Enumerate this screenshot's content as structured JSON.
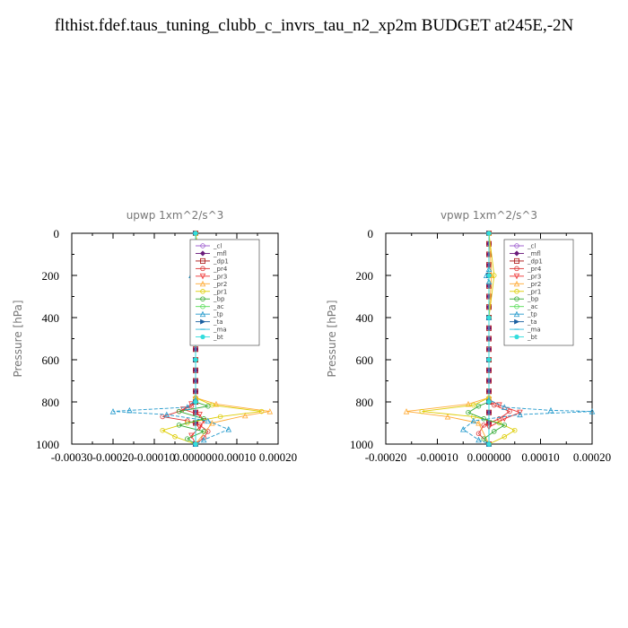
{
  "page_title": "flthist.fdef.taus_tuning_clubb_c_invrs_tau_n2_xp2m  BUDGET at245E,-2N",
  "chart_data": [
    {
      "type": "line",
      "title": "upwp   1xm^2/s^3",
      "ylabel": "Pressure [hPa]",
      "ylim": [
        1000,
        0
      ],
      "xlim": [
        -0.0003,
        0.0002
      ],
      "xticks": [
        -0.0003,
        -0.0002,
        -0.0001,
        0.0,
        0.0001,
        0.0002
      ],
      "xtick_labels": [
        "-0.00030",
        "-0.00020",
        "-0.00010",
        "0.000000",
        "0.00010",
        "0.00020"
      ],
      "yticks": [
        0,
        200,
        400,
        600,
        800,
        1000
      ],
      "ytick_labels": [
        "0",
        "200",
        "400",
        "600",
        "800",
        "1000"
      ],
      "legend_position": "top-right",
      "series": [
        {
          "name": "_cl",
          "color": "#9955cc",
          "marker": "circle",
          "x": [
            0,
            0,
            0,
            0,
            0,
            0,
            0,
            0,
            0,
            0,
            0,
            0,
            0,
            0,
            0,
            0,
            0,
            0,
            0,
            0
          ],
          "y": [
            0,
            50,
            100,
            150,
            200,
            250,
            300,
            350,
            400,
            450,
            500,
            550,
            600,
            650,
            700,
            750,
            800,
            850,
            900,
            1000
          ]
        },
        {
          "name": "_mfl",
          "color": "#6a1a7a",
          "marker": "diamond",
          "x": [
            0,
            0,
            0,
            0,
            0,
            0,
            0,
            0,
            0,
            0,
            0,
            0,
            0,
            0,
            0,
            0,
            0,
            0,
            0,
            0
          ],
          "y": [
            0,
            50,
            100,
            150,
            200,
            250,
            300,
            350,
            400,
            450,
            500,
            550,
            600,
            650,
            700,
            750,
            800,
            850,
            900,
            1000
          ]
        },
        {
          "name": "_dp1",
          "color": "#aa1111",
          "marker": "square",
          "x": [
            0,
            0,
            0,
            0,
            0,
            0,
            0,
            0,
            0,
            0,
            0,
            0,
            0,
            0,
            0,
            0,
            0,
            0,
            0,
            0
          ],
          "y": [
            0,
            50,
            100,
            150,
            200,
            250,
            300,
            350,
            400,
            450,
            500,
            550,
            600,
            650,
            700,
            750,
            800,
            850,
            900,
            1000
          ]
        },
        {
          "name": "_pr4",
          "color": "#dd3333",
          "marker": "circle",
          "x": [
            0,
            0,
            0,
            0,
            0,
            -1e-05,
            -4e-05,
            -8e-05,
            -2e-05,
            1e-05,
            3e-05,
            2e-05,
            0
          ],
          "y": [
            0,
            200,
            600,
            780,
            800,
            820,
            845,
            870,
            890,
            910,
            940,
            970,
            1000
          ]
        },
        {
          "name": "_pr3",
          "color": "#ee3333",
          "marker": "triangle-down",
          "x": [
            0,
            0,
            0,
            -1e-05,
            -3e-05,
            1e-05,
            2e-05,
            1e-05,
            -1e-05,
            0
          ],
          "y": [
            0,
            600,
            790,
            810,
            835,
            860,
            890,
            920,
            960,
            1000
          ]
        },
        {
          "name": "_pr2",
          "color": "#ffaa33",
          "marker": "triangle-up",
          "x": [
            0,
            1e-05,
            0,
            0,
            5e-05,
            0.00018,
            0.00012,
            4e-05,
            0
          ],
          "y": [
            0,
            200,
            400,
            780,
            810,
            845,
            865,
            900,
            1000
          ]
        },
        {
          "name": "_pr1",
          "color": "#ddcc00",
          "marker": "circle",
          "x": [
            0,
            2e-05,
            0,
            0,
            4e-05,
            0.00016,
            6e-05,
            -2e-05,
            -8e-05,
            -5e-05,
            0
          ],
          "y": [
            0,
            210,
            400,
            780,
            815,
            845,
            870,
            900,
            935,
            965,
            1000
          ]
        },
        {
          "name": "_bp",
          "color": "#33aa33",
          "marker": "circle",
          "x": [
            0,
            0,
            0,
            3e-05,
            -4e-05,
            2e-05,
            -4e-05,
            2e-05,
            -2e-05,
            0
          ],
          "y": [
            0,
            600,
            800,
            820,
            845,
            880,
            910,
            940,
            975,
            1000
          ]
        },
        {
          "name": "_ac",
          "color": "#55dd55",
          "marker": "circle",
          "x": [
            0,
            0,
            0,
            0,
            0,
            0
          ],
          "y": [
            0,
            200,
            400,
            600,
            800,
            1000
          ]
        },
        {
          "name": "_tp",
          "color": "#2299cc",
          "marker": "triangle-up",
          "x": [
            -5e-06,
            -1e-05,
            -5e-06,
            0,
            0,
            -2e-05,
            -0.00016,
            -0.0002,
            -7e-05,
            3e-05,
            8e-05,
            2e-05,
            0
          ],
          "y": [
            170,
            200,
            230,
            400,
            790,
            825,
            840,
            845,
            860,
            890,
            930,
            980,
            1000
          ]
        },
        {
          "name": "_ta",
          "color": "#1a5fa0",
          "marker": "arrow",
          "x": [
            0,
            0,
            0,
            0,
            0,
            0
          ],
          "y": [
            0,
            200,
            400,
            600,
            800,
            1000
          ]
        },
        {
          "name": "_ma",
          "color": "#33bbdd",
          "marker": "dash",
          "x": [
            0,
            0,
            0,
            0,
            0,
            0
          ],
          "y": [
            0,
            200,
            400,
            600,
            800,
            1000
          ]
        },
        {
          "name": "_bt",
          "color": "#33dddd",
          "marker": "circle-filled",
          "x": [
            0,
            0,
            0,
            0,
            0,
            0
          ],
          "y": [
            0,
            200,
            400,
            600,
            800,
            1000
          ]
        }
      ]
    },
    {
      "type": "line",
      "title": "vpwp   1xm^2/s^3",
      "ylabel": "Pressure [hPa]",
      "ylim": [
        1000,
        0
      ],
      "xlim": [
        -0.0002,
        0.0002
      ],
      "xticks": [
        -0.0002,
        -0.0001,
        0.0,
        0.0001,
        0.0002
      ],
      "xtick_labels": [
        "-0.00020",
        "-0.00010",
        "0.000000",
        "0.00010",
        "0.00020"
      ],
      "yticks": [
        0,
        200,
        400,
        600,
        800,
        1000
      ],
      "ytick_labels": [
        "0",
        "200",
        "400",
        "600",
        "800",
        "1000"
      ],
      "legend_position": "top-right",
      "series": [
        {
          "name": "_cl",
          "color": "#9955cc",
          "marker": "circle",
          "x": [
            0,
            0,
            0,
            0,
            0,
            0,
            0,
            0,
            0,
            0,
            0,
            0,
            0,
            0,
            0,
            0,
            0,
            0,
            0,
            0
          ],
          "y": [
            0,
            50,
            100,
            150,
            200,
            250,
            300,
            350,
            400,
            450,
            500,
            550,
            600,
            650,
            700,
            750,
            800,
            850,
            900,
            1000
          ]
        },
        {
          "name": "_mfl",
          "color": "#6a1a7a",
          "marker": "diamond",
          "x": [
            0,
            0,
            0,
            0,
            0,
            0,
            0,
            0,
            0,
            0,
            0,
            0,
            0,
            0,
            0,
            0,
            0,
            0,
            0,
            0
          ],
          "y": [
            0,
            50,
            100,
            150,
            200,
            250,
            300,
            350,
            400,
            450,
            500,
            550,
            600,
            650,
            700,
            750,
            800,
            850,
            900,
            1000
          ]
        },
        {
          "name": "_dp1",
          "color": "#aa1111",
          "marker": "square",
          "x": [
            0,
            0,
            0,
            0,
            0,
            0,
            0,
            0,
            0,
            0,
            0,
            0,
            0,
            0,
            0,
            0,
            0,
            0,
            0,
            0
          ],
          "y": [
            0,
            50,
            100,
            150,
            200,
            250,
            300,
            350,
            400,
            450,
            500,
            550,
            600,
            650,
            700,
            750,
            800,
            850,
            900,
            1000
          ]
        },
        {
          "name": "_pr4",
          "color": "#dd3333",
          "marker": "circle",
          "x": [
            0,
            0,
            0,
            1e-05,
            4e-05,
            2e-05,
            -1e-05,
            -2e-05,
            0
          ],
          "y": [
            0,
            600,
            790,
            815,
            845,
            880,
            910,
            950,
            1000
          ]
        },
        {
          "name": "_pr3",
          "color": "#ee3333",
          "marker": "triangle-down",
          "x": [
            0,
            0,
            0,
            2e-05,
            6e-05,
            3e-05,
            0,
            0
          ],
          "y": [
            0,
            600,
            790,
            815,
            850,
            880,
            920,
            1000
          ]
        },
        {
          "name": "_pr2",
          "color": "#ffaa33",
          "marker": "triangle-up",
          "x": [
            0,
            5e-06,
            0,
            0,
            -4e-05,
            -0.00016,
            -8e-05,
            -2e-05,
            0
          ],
          "y": [
            0,
            200,
            400,
            780,
            810,
            845,
            870,
            900,
            1000
          ]
        },
        {
          "name": "_pr1",
          "color": "#ddcc00",
          "marker": "circle",
          "x": [
            0,
            1e-05,
            0,
            0,
            -3e-05,
            -0.00013,
            -3e-05,
            2e-05,
            5e-05,
            3e-05,
            0
          ],
          "y": [
            0,
            200,
            400,
            780,
            815,
            845,
            870,
            900,
            935,
            965,
            1000
          ]
        },
        {
          "name": "_bp",
          "color": "#33aa33",
          "marker": "circle",
          "x": [
            0,
            0,
            0,
            -2e-05,
            -4e-05,
            -1e-05,
            3e-05,
            1e-05,
            -1e-05,
            0
          ],
          "y": [
            0,
            600,
            800,
            820,
            850,
            880,
            910,
            940,
            975,
            1000
          ]
        },
        {
          "name": "_ac",
          "color": "#55dd55",
          "marker": "circle",
          "x": [
            0,
            0,
            0,
            0,
            0,
            0
          ],
          "y": [
            0,
            200,
            400,
            600,
            800,
            1000
          ]
        },
        {
          "name": "_tp",
          "color": "#2299cc",
          "marker": "triangle-up",
          "x": [
            0,
            -5e-06,
            0,
            0,
            0,
            3e-05,
            0.00012,
            0.0002,
            6e-05,
            -3e-05,
            -5e-05,
            -2e-05,
            0
          ],
          "y": [
            170,
            200,
            230,
            400,
            790,
            825,
            840,
            845,
            860,
            890,
            930,
            980,
            1000
          ]
        },
        {
          "name": "_ta",
          "color": "#1a5fa0",
          "marker": "arrow",
          "x": [
            0,
            0,
            0,
            0,
            0,
            0
          ],
          "y": [
            0,
            200,
            400,
            600,
            800,
            1000
          ]
        },
        {
          "name": "_ma",
          "color": "#33bbdd",
          "marker": "dash",
          "x": [
            0,
            0,
            0,
            0,
            0,
            0
          ],
          "y": [
            0,
            200,
            400,
            600,
            800,
            1000
          ]
        },
        {
          "name": "_bt",
          "color": "#33dddd",
          "marker": "circle-filled",
          "x": [
            0,
            0,
            0,
            0,
            0,
            0
          ],
          "y": [
            0,
            200,
            400,
            600,
            800,
            1000
          ]
        }
      ]
    }
  ]
}
